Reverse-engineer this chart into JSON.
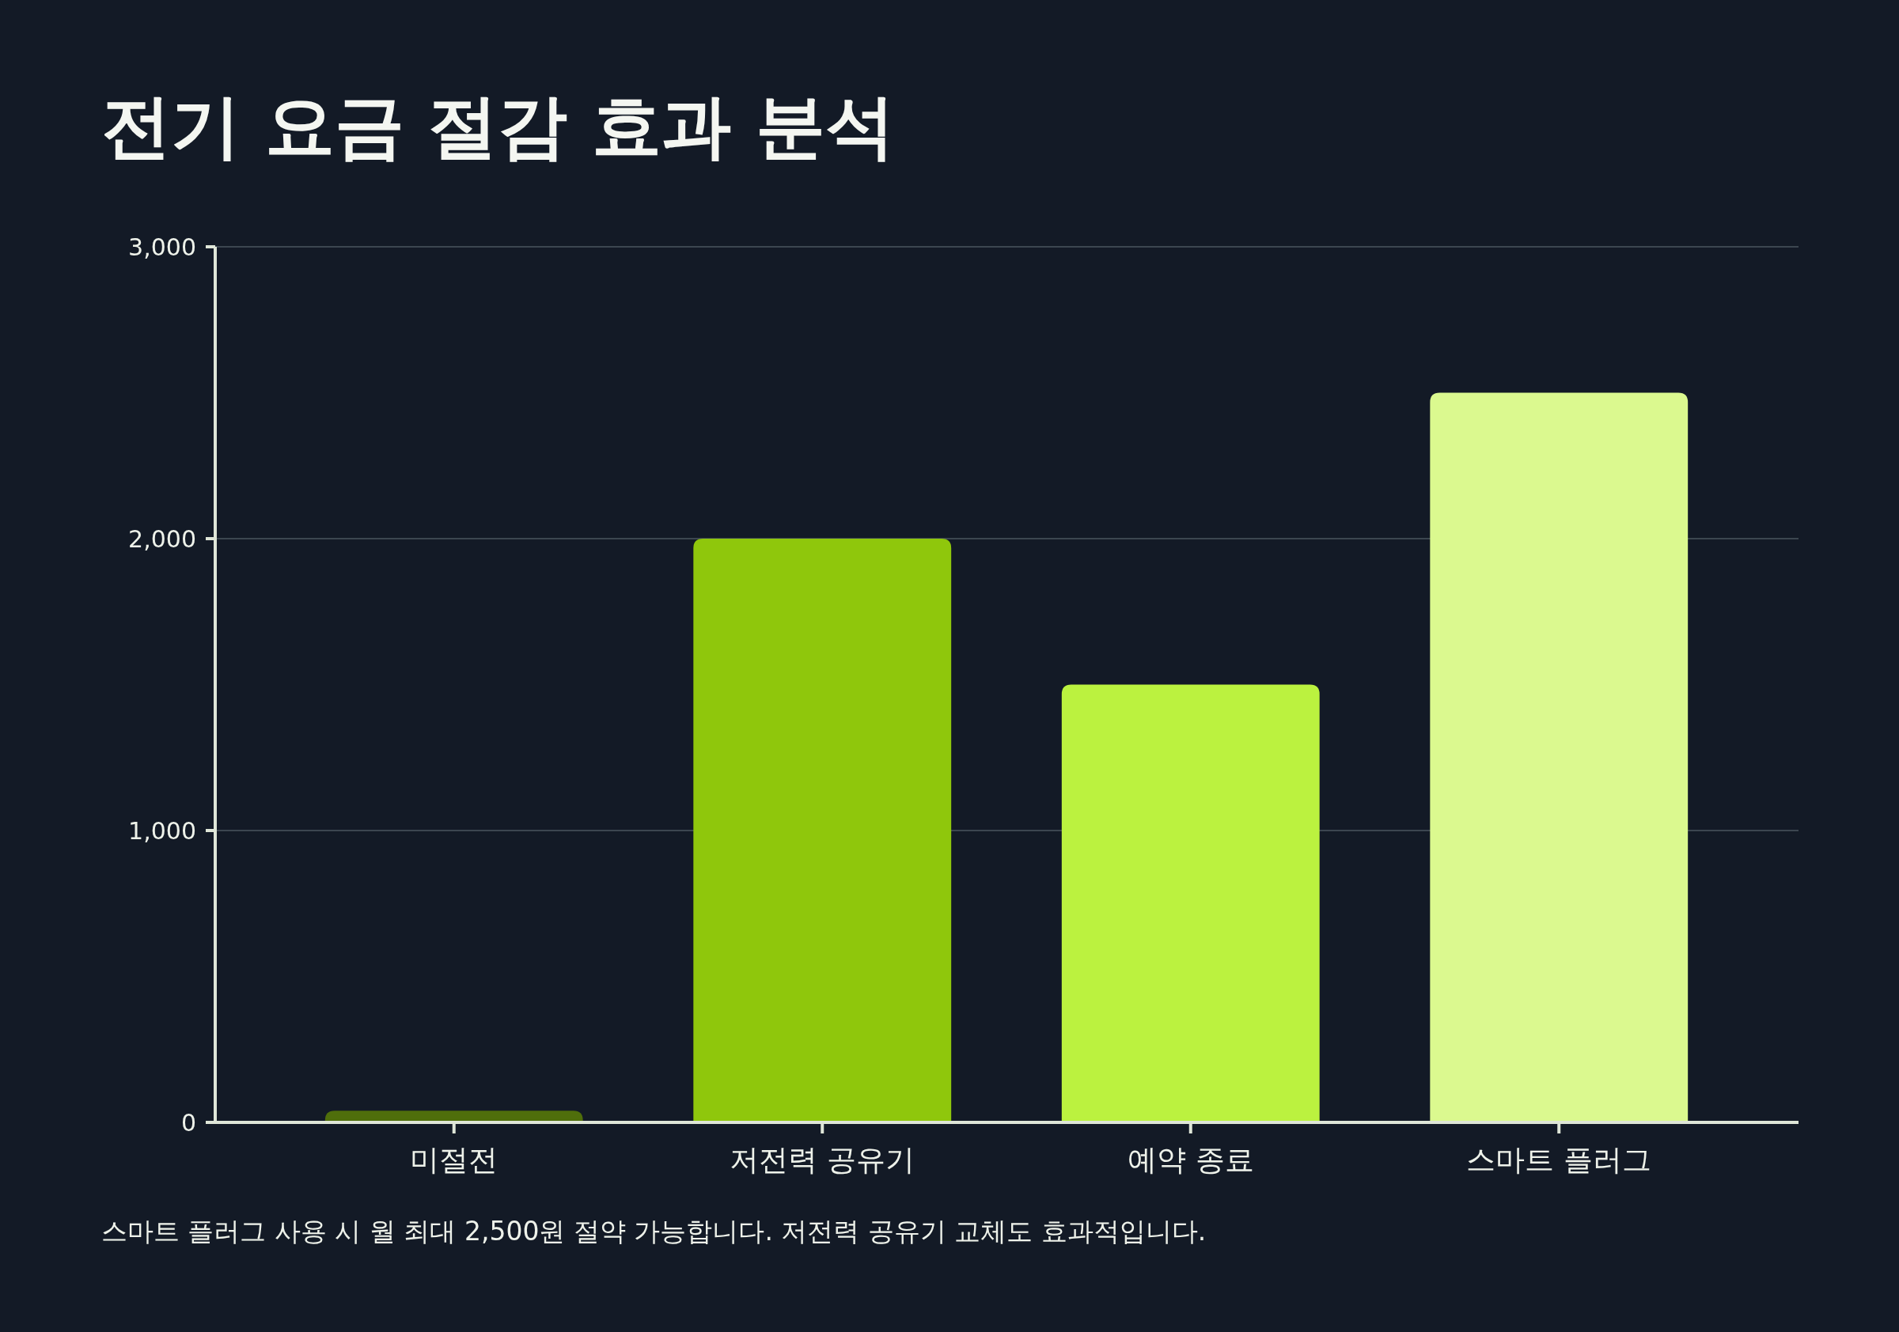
{
  "chart_data": {
    "type": "bar",
    "title": "전기 요금 절감 효과 분석",
    "categories": [
      "미절전",
      "저전력 공유기",
      "예약 종료",
      "스마트 플러그"
    ],
    "values": [
      40,
      2000,
      1500,
      2500
    ],
    "colors": [
      "#4f6e0b",
      "#8fc70c",
      "#bbf23f",
      "#dbf98f"
    ],
    "ylim": [
      0,
      3000
    ],
    "yticks": [
      0,
      {
        "value": 1000,
        "label": "1,000"
      },
      {
        "value": 2000,
        "label": "2,000"
      },
      {
        "value": 3000,
        "label": "3,000"
      }
    ],
    "grid": "y",
    "annotations": [
      "스마트 플러그 사용 시 월 최대 2,500원 절약 가능합니다. 저전력 공유기 교체도 효과적입니다."
    ]
  }
}
